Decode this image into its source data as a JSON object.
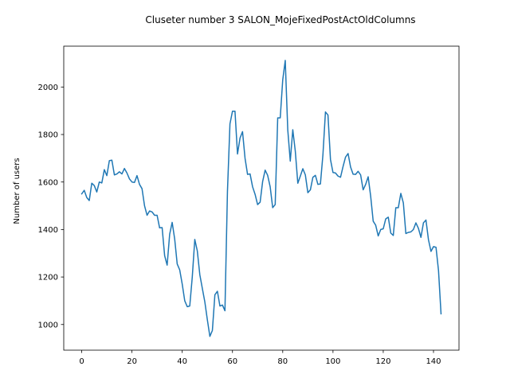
{
  "chart_data": {
    "type": "line",
    "title": "Cluseter number 3 SALON_MojeFixedPostActOldColumns",
    "xlabel": "",
    "ylabel": "Number of users",
    "xlim": [
      -7.15,
      150.15
    ],
    "ylim": [
      892,
      2172
    ],
    "xticks": [
      0,
      20,
      40,
      60,
      80,
      100,
      120,
      140
    ],
    "yticks": [
      1000,
      1200,
      1400,
      1600,
      1800,
      2000
    ],
    "grid": false,
    "line_color": "#1f77b4",
    "series": [
      {
        "values": [
          1550,
          1565,
          1535,
          1522,
          1595,
          1585,
          1558,
          1600,
          1596,
          1652,
          1627,
          1690,
          1692,
          1630,
          1634,
          1643,
          1634,
          1657,
          1638,
          1613,
          1600,
          1598,
          1627,
          1590,
          1572,
          1500,
          1460,
          1478,
          1474,
          1460,
          1460,
          1407,
          1408,
          1290,
          1250,
          1380,
          1430,
          1360,
          1255,
          1230,
          1170,
          1100,
          1075,
          1078,
          1200,
          1358,
          1310,
          1210,
          1152,
          1095,
          1020,
          950,
          975,
          1125,
          1140,
          1078,
          1082,
          1058,
          1560,
          1845,
          1898,
          1898,
          1718,
          1785,
          1812,
          1700,
          1632,
          1634,
          1580,
          1548,
          1505,
          1515,
          1602,
          1650,
          1628,
          1580,
          1492,
          1505,
          1870,
          1870,
          2030,
          2112,
          1820,
          1688,
          1820,
          1730,
          1595,
          1625,
          1656,
          1630,
          1555,
          1567,
          1620,
          1628,
          1590,
          1592,
          1715,
          1895,
          1882,
          1695,
          1640,
          1638,
          1625,
          1620,
          1665,
          1705,
          1720,
          1663,
          1633,
          1632,
          1645,
          1630,
          1567,
          1590,
          1622,
          1540,
          1435,
          1418,
          1373,
          1400,
          1403,
          1445,
          1452,
          1385,
          1375,
          1492,
          1492,
          1552,
          1512,
          1383,
          1388,
          1390,
          1400,
          1428,
          1405,
          1367,
          1428,
          1440,
          1357,
          1308,
          1328,
          1325,
          1227,
          1045
        ]
      }
    ]
  }
}
